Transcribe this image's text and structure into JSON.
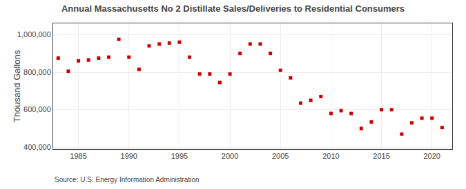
{
  "chart_data": {
    "type": "scatter",
    "title": "Annual Massachusetts No 2 Distillate Sales/Deliveries to Residential Consumers",
    "ylabel": "Thousand Gallons",
    "annotations": [
      "Source: U.S. Energy Information Administration"
    ],
    "x": [
      1983,
      1984,
      1985,
      1986,
      1987,
      1988,
      1989,
      1990,
      1991,
      1992,
      1993,
      1994,
      1995,
      1996,
      1997,
      1998,
      1999,
      2000,
      2001,
      2002,
      2003,
      2004,
      2005,
      2006,
      2007,
      2008,
      2009,
      2010,
      2011,
      2012,
      2013,
      2014,
      2015,
      2016,
      2017,
      2018,
      2019,
      2020,
      2021
    ],
    "values": [
      875000,
      805000,
      860000,
      865000,
      875000,
      880000,
      975000,
      880000,
      815000,
      940000,
      950000,
      955000,
      960000,
      880000,
      790000,
      790000,
      745000,
      790000,
      900000,
      950000,
      950000,
      900000,
      810000,
      770000,
      635000,
      650000,
      670000,
      580000,
      595000,
      580000,
      500000,
      535000,
      600000,
      600000,
      470000,
      530000,
      555000,
      555000,
      505000
    ],
    "color": "#cc0000",
    "marker": "square",
    "xlim": [
      1982.5,
      2022
    ],
    "ylim": [
      390000,
      1060000
    ],
    "xticks": [
      1985,
      1990,
      1995,
      2000,
      2005,
      2010,
      2015,
      2020
    ],
    "yticks": [
      {
        "value": 400000,
        "label": "400,000"
      },
      {
        "value": 600000,
        "label": "600,000"
      },
      {
        "value": 800000,
        "label": "800,000"
      },
      {
        "value": 1000000,
        "label": "1,000,000"
      }
    ],
    "grid": true
  }
}
